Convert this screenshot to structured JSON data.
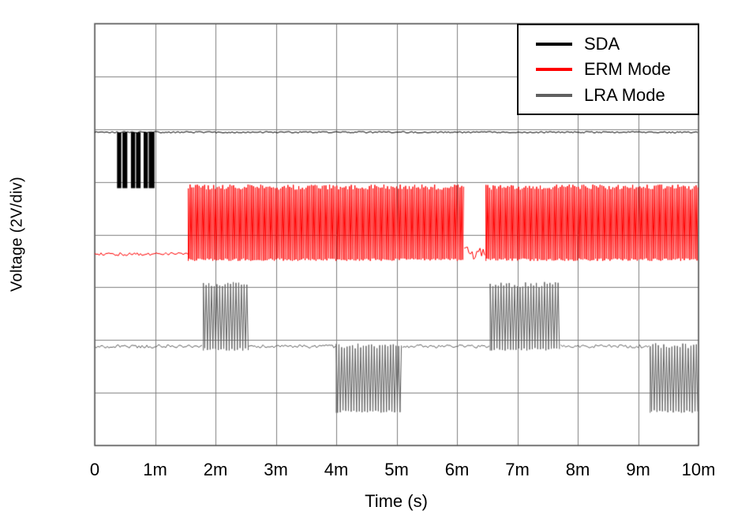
{
  "chart_data": {
    "type": "line",
    "title": "",
    "xlabel": "Time (s)",
    "ylabel": "Voltage (2V/div)",
    "x_ticks": [
      "0",
      "1m",
      "2m",
      "3m",
      "4m",
      "5m",
      "6m",
      "7m",
      "8m",
      "9m",
      "10m"
    ],
    "x_range_ms": [
      0,
      10
    ],
    "y_divisions": 8,
    "volts_per_div": 2,
    "grid": true,
    "background": "#ffffff",
    "grid_color": "#808080",
    "frame_color": "#5a5a5a",
    "legend": {
      "position": "top-right",
      "entries": [
        {
          "label": "SDA",
          "color": "#000000"
        },
        {
          "label": "ERM Mode",
          "color": "#ff0000"
        },
        {
          "label": "LRA Mode",
          "color": "#606060"
        }
      ]
    },
    "series": [
      {
        "name": "SDA",
        "color": "#000000",
        "segments": [
          {
            "type": "flat",
            "t0": 0,
            "t1": 10,
            "div": 2.06,
            "noise_div": 0.015
          },
          {
            "type": "pulses",
            "high_div": 2.06,
            "low_div": 3.12,
            "intervals": [
              [
                0.37,
                0.44
              ],
              [
                0.46,
                0.54
              ],
              [
                0.6,
                0.67
              ],
              [
                0.685,
                0.76
              ],
              [
                0.81,
                0.88
              ],
              [
                0.895,
                0.99
              ]
            ]
          }
        ]
      },
      {
        "name": "ERM Mode",
        "color": "#ff0000",
        "segments": [
          {
            "type": "flat",
            "t0": 0,
            "t1": 1.55,
            "div": 4.37,
            "noise_div": 0.03
          },
          {
            "type": "burst",
            "t0": 1.55,
            "t1": 6.12,
            "top": 3.05,
            "bottom": 4.5,
            "period_ms": 0.03
          },
          {
            "type": "flat",
            "t0": 6.12,
            "t1": 6.48,
            "div": 4.35,
            "noise_div": 0.12
          },
          {
            "type": "burst",
            "t0": 6.48,
            "t1": 10,
            "top": 3.05,
            "bottom": 4.5,
            "period_ms": 0.03
          }
        ]
      },
      {
        "name": "LRA Mode",
        "color": "#606060",
        "segments": [
          {
            "type": "flat",
            "t0": 0,
            "t1": 1.8,
            "div": 6.12,
            "noise_div": 0.03
          },
          {
            "type": "burst",
            "t0": 1.8,
            "t1": 2.55,
            "top": 4.9,
            "bottom": 6.2,
            "period_ms": 0.045
          },
          {
            "type": "flat",
            "t0": 2.55,
            "t1": 4.0,
            "div": 6.12,
            "noise_div": 0.03
          },
          {
            "type": "burst",
            "t0": 4.0,
            "t1": 5.1,
            "top": 6.06,
            "bottom": 7.38,
            "period_ms": 0.045
          },
          {
            "type": "flat",
            "t0": 5.1,
            "t1": 6.55,
            "div": 6.12,
            "noise_div": 0.03
          },
          {
            "type": "burst",
            "t0": 6.55,
            "t1": 7.72,
            "top": 4.9,
            "bottom": 6.2,
            "period_ms": 0.045
          },
          {
            "type": "flat",
            "t0": 7.72,
            "t1": 9.2,
            "div": 6.12,
            "noise_div": 0.03
          },
          {
            "type": "burst",
            "t0": 9.2,
            "t1": 10,
            "top": 6.06,
            "bottom": 7.38,
            "period_ms": 0.045
          }
        ]
      }
    ]
  }
}
